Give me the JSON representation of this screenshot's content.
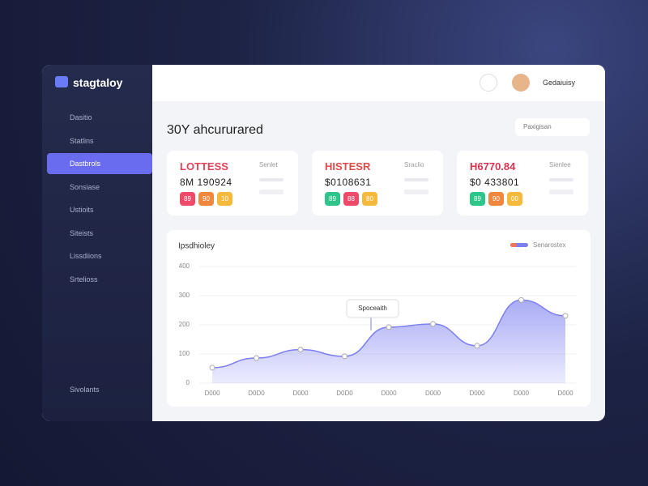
{
  "sidebar": {
    "logo": "stagtaloy",
    "items": [
      "Dasitio",
      "Statlins",
      "Dastbrols",
      "Sonsiase",
      "Ustioits",
      "Siteists",
      "Lissdiions",
      "Srtelioss"
    ],
    "footer": "Sivolants"
  },
  "header": {
    "user": "Gedaiuisy"
  },
  "page": {
    "title": "30Y ahcururared",
    "button": "Paxigisan"
  },
  "cards": [
    {
      "title": "LOTTESS",
      "value": "8M 190924",
      "label": "Senlet",
      "tags": [
        "89",
        "90",
        "10"
      ]
    },
    {
      "title": "HISTESR",
      "value": "$0108631",
      "label": "Sraclio",
      "tags": [
        "89",
        "88",
        "80"
      ]
    },
    {
      "title": "H6770.84",
      "value": "$0 433801",
      "label": "Sienlee",
      "tags": [
        "89",
        "90",
        "00"
      ]
    }
  ],
  "chart_data": {
    "type": "area",
    "title": "Ipsdhioley",
    "annotation": "Spoceaith",
    "categories": [
      "D000",
      "D0D0",
      "D000",
      "D0D0",
      "D000",
      "D000",
      "D000",
      "D000",
      "D000"
    ],
    "series": [
      {
        "name": "Senarostex",
        "color": "#7c7ff0",
        "values": [
          53,
          86,
          115,
          92,
          192,
          203,
          128,
          285,
          231
        ]
      }
    ],
    "ylim": [
      0,
      400
    ],
    "yticks": [
      0,
      100,
      200,
      300,
      400
    ],
    "grid": true
  }
}
